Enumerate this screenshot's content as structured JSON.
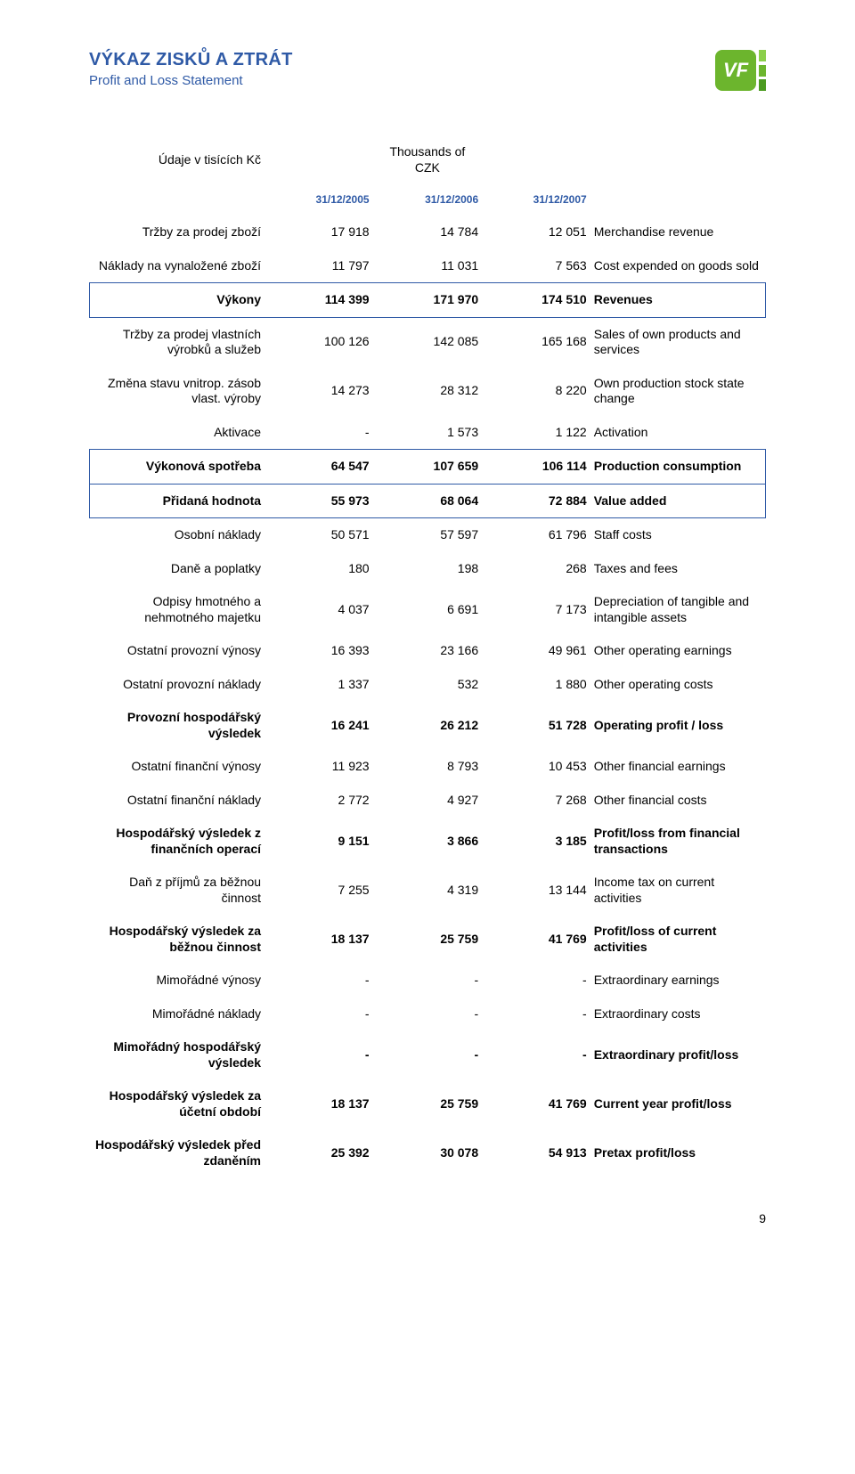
{
  "header": {
    "title_cz": "VÝKAZ ZISKŮ A ZTRÁT",
    "title_en": "Profit and Loss Statement"
  },
  "logo": {
    "text": "VF",
    "box_color": "#6cb52d",
    "stripe_colors": [
      "#8bcf4a",
      "#6cb52d",
      "#4b9b20"
    ]
  },
  "unit_row": {
    "cz": "Údaje v tisících Kč",
    "en": "Thousands of CZK"
  },
  "dates": [
    "31/12/2005",
    "31/12/2006",
    "31/12/2007"
  ],
  "rows": [
    {
      "cz": "Tržby za prodej zboží",
      "v": [
        "17 918",
        "14 784",
        "12 051"
      ],
      "en": "Merchandise revenue"
    },
    {
      "cz": "Náklady na vynaložené zboží",
      "v": [
        "11 797",
        "11 031",
        "7 563"
      ],
      "en": "Cost expended on goods sold"
    },
    {
      "cz": "Výkony",
      "v": [
        "114 399",
        "171 970",
        "174 510"
      ],
      "en": "Revenues",
      "bold": true,
      "box": true
    },
    {
      "cz": "Tržby za prodej vlastních výrobků a služeb",
      "v": [
        "100 126",
        "142 085",
        "165 168"
      ],
      "en": "Sales of own products and services"
    },
    {
      "cz": "Změna stavu vnitrop. zásob vlast. výroby",
      "v": [
        "14 273",
        "28 312",
        "8 220"
      ],
      "en": "Own production stock state change"
    },
    {
      "cz": "Aktivace",
      "v": [
        "-",
        "1 573",
        "1 122"
      ],
      "en": "Activation"
    },
    {
      "cz": "Výkonová spotřeba",
      "v": [
        "64 547",
        "107 659",
        "106 114"
      ],
      "en": "Production consumption",
      "bold": true,
      "box": true
    },
    {
      "cz": "Přidaná hodnota",
      "v": [
        "55 973",
        "68 064",
        "72 884"
      ],
      "en": "Value added",
      "bold": true,
      "box": true
    },
    {
      "cz": "Osobní náklady",
      "v": [
        "50 571",
        "57 597",
        "61 796"
      ],
      "en": "Staff costs"
    },
    {
      "cz": "Daně a poplatky",
      "v": [
        "180",
        "198",
        "268"
      ],
      "en": "Taxes and fees"
    },
    {
      "cz": "Odpisy hmotného a nehmotného majetku",
      "v": [
        "4 037",
        "6 691",
        "7 173"
      ],
      "en": "Depreciation of tangible and intangible assets"
    },
    {
      "cz": "Ostatní provozní výnosy",
      "v": [
        "16 393",
        "23 166",
        "49 961"
      ],
      "en": "Other operating earnings"
    },
    {
      "cz": "Ostatní provozní náklady",
      "v": [
        "1 337",
        "532",
        "1 880"
      ],
      "en": "Other operating costs"
    },
    {
      "cz": "Provozní hospodářský výsledek",
      "v": [
        "16 241",
        "26 212",
        "51 728"
      ],
      "en": "Operating profit / loss",
      "bold": true
    },
    {
      "cz": "Ostatní finanční výnosy",
      "v": [
        "11 923",
        "8 793",
        "10 453"
      ],
      "en": "Other financial earnings"
    },
    {
      "cz": "Ostatní finanční náklady",
      "v": [
        "2 772",
        "4 927",
        "7 268"
      ],
      "en": "Other financial costs"
    },
    {
      "cz": "Hospodářský výsledek z finančních operací",
      "v": [
        "9 151",
        "3 866",
        "3 185"
      ],
      "en": "Profit/loss from financial transactions",
      "bold": true
    },
    {
      "cz": "Daň z příjmů za běžnou činnost",
      "v": [
        "7 255",
        "4 319",
        "13 144"
      ],
      "en": "Income tax on current activities"
    },
    {
      "cz": "Hospodářský výsledek za běžnou činnost",
      "v": [
        "18 137",
        "25 759",
        "41 769"
      ],
      "en": "Profit/loss of current activities",
      "bold": true
    },
    {
      "cz": "Mimořádné výnosy",
      "v": [
        "-",
        "-",
        "-"
      ],
      "en": "Extraordinary earnings"
    },
    {
      "cz": "Mimořádné náklady",
      "v": [
        "-",
        "-",
        "-"
      ],
      "en": "Extraordinary costs"
    },
    {
      "cz": "Mimořádný hospodářský výsledek",
      "v": [
        "-",
        "-",
        "-"
      ],
      "en": "Extraordinary profit/loss",
      "bold": true
    },
    {
      "cz": "Hospodářský výsledek za účetní období",
      "v": [
        "18 137",
        "25 759",
        "41 769"
      ],
      "en": "Current year profit/loss",
      "bold": true
    },
    {
      "cz": "Hospodářský výsledek před zdaněním",
      "v": [
        "25 392",
        "30 078",
        "54 913"
      ],
      "en": "Pretax profit/loss",
      "bold": true
    }
  ],
  "page_number": "9",
  "colors": {
    "heading": "#2f5aa6",
    "border": "#2f5aa6",
    "background": "#ffffff",
    "text": "#000000"
  },
  "typography": {
    "title_cz_fontsize": 20,
    "title_en_fontsize": 15,
    "body_fontsize": 14,
    "dates_fontsize": 12,
    "font_family": "Verdana, Arial, sans-serif"
  }
}
